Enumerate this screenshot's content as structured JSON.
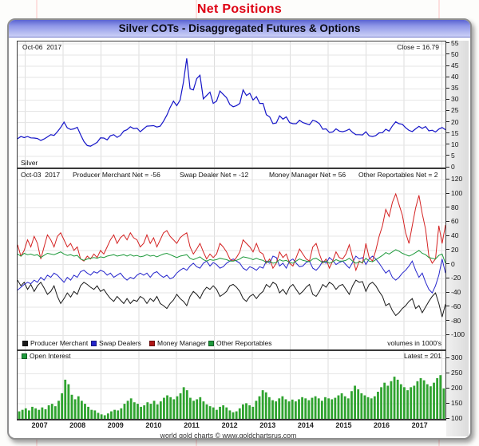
{
  "page": {
    "title": "Net Positions"
  },
  "window": {
    "title": "Silver COTs - Disaggregated Futures & Options"
  },
  "colors": {
    "title_red": "#de0012",
    "silver_line": "#1515c8",
    "producer_merchant": "#1a1a1a",
    "swap_dealers": "#2626cc",
    "money_manager": "#d42222",
    "other_reportables": "#1f9a3c",
    "open_interest_bar": "#2fa32f",
    "header_text": "#0a0a14"
  },
  "panel1": {
    "date_label": "Oct-06  2017",
    "close_label": "Close = 16.79",
    "series_label": "Silver"
  },
  "panel2": {
    "date_label": "Oct-03  2017",
    "stats": [
      "Producer Merchant Net = -56",
      "Swap Dealer Net = -12",
      "Money Manager Net = 56",
      "Other Reportables Net = 2"
    ]
  },
  "legend": {
    "items": [
      {
        "label": "Producer Merchant",
        "color": "#1a1a1a"
      },
      {
        "label": "Swap Dealers",
        "color": "#2626cc"
      },
      {
        "label": "Money Manager",
        "color": "#b01515"
      },
      {
        "label": "Other Reportables",
        "color": "#1f9a3c"
      }
    ],
    "volumes_note": "volumes in 1000's"
  },
  "panel3": {
    "label": "Open Interest",
    "swatch_color": "#1f9a3c",
    "latest_label": "Latest = 201"
  },
  "footer": {
    "credit": "world gold charts © www.goldchartsrus.com"
  },
  "x_axis": {
    "domain": [
      2006.8,
      2018.1
    ],
    "years": [
      2007,
      2008,
      2009,
      2010,
      2011,
      2012,
      2013,
      2014,
      2015,
      2016,
      2017
    ],
    "grid_years": [
      2007,
      2008,
      2009,
      2010,
      2011,
      2012,
      2013,
      2014,
      2015,
      2016,
      2017,
      2018
    ]
  },
  "chart_data": [
    {
      "id": "silver-price",
      "type": "line",
      "title": "Silver",
      "ylim": [
        0,
        56
      ],
      "yticks": [
        0,
        5,
        10,
        15,
        20,
        25,
        30,
        35,
        40,
        45,
        50,
        55
      ],
      "x_range_years": [
        2007.0,
        2017.78
      ],
      "latest_close": 16.79,
      "series": [
        {
          "name": "Silver",
          "color": "#1515c8",
          "width": 1.2,
          "values": [
            12.8,
            13.8,
            13.3,
            13.8,
            13.2,
            13.1,
            12.9,
            12.0,
            12.7,
            13.6,
            14.6,
            14.3,
            15.9,
            17.8,
            20.2,
            17.6,
            16.9,
            17.2,
            17.9,
            14.6,
            11.6,
            9.8,
            9.5,
            10.3,
            11.2,
            13.2,
            13.1,
            12.3,
            14.1,
            14.6,
            13.4,
            14.3,
            16.2,
            16.8,
            18.1,
            17.3,
            17.5,
            15.9,
            17.2,
            18.4,
            18.5,
            18.6,
            18.0,
            18.4,
            20.6,
            23.3,
            26.7,
            29.5,
            27.5,
            30.0,
            38.0,
            48.5,
            35.0,
            34.5,
            39.5,
            41.0,
            30.5,
            32.0,
            33.5,
            28.5,
            29.5,
            34.0,
            32.5,
            31.0,
            28.0,
            27.0,
            27.5,
            28.5,
            34.5,
            32.0,
            33.0,
            30.0,
            31.5,
            28.5,
            28.5,
            23.5,
            22.5,
            19.5,
            19.8,
            23.0,
            21.5,
            22.5,
            20.0,
            19.5,
            19.5,
            21.0,
            20.0,
            19.5,
            19.0,
            21.0,
            20.5,
            19.5,
            17.0,
            17.2,
            15.6,
            15.8,
            17.2,
            16.2,
            15.9,
            16.3,
            17.1,
            15.6,
            14.6,
            14.6,
            14.5,
            15.9,
            14.1,
            13.8,
            14.2,
            15.4,
            15.5,
            17.0,
            16.2,
            18.5,
            20.3,
            19.5,
            19.2,
            17.7,
            16.5,
            16.0,
            17.2,
            18.3,
            17.4,
            18.2,
            16.3,
            16.6,
            15.8,
            17.1,
            17.8,
            16.8
          ]
        }
      ]
    },
    {
      "id": "cot-net-positions",
      "type": "line",
      "title": "Disaggregated COT Net Positions (contracts in 1000's)",
      "ylim": [
        -120,
        135
      ],
      "yticks": [
        -100,
        -80,
        -60,
        -40,
        -20,
        0,
        20,
        40,
        60,
        80,
        100,
        120
      ],
      "latest": {
        "producer_merchant": -56,
        "swap_dealers": -12,
        "money_manager": 56,
        "other_reportables": 2
      },
      "series": [
        {
          "name": "Producer Merchant",
          "color": "#1a1a1a",
          "width": 1,
          "values": [
            -22,
            -30,
            -25,
            -35,
            -28,
            -38,
            -30,
            -25,
            -33,
            -42,
            -38,
            -30,
            -45,
            -55,
            -48,
            -40,
            -46,
            -38,
            -42,
            -30,
            -25,
            -28,
            -32,
            -35,
            -30,
            -38,
            -35,
            -42,
            -48,
            -52,
            -45,
            -50,
            -55,
            -48,
            -55,
            -50,
            -52,
            -45,
            -48,
            -55,
            -48,
            -52,
            -45,
            -55,
            -58,
            -62,
            -55,
            -50,
            -42,
            -48,
            -52,
            -58,
            -45,
            -38,
            -42,
            -48,
            -38,
            -32,
            -35,
            -30,
            -35,
            -45,
            -42,
            -38,
            -30,
            -28,
            -32,
            -38,
            -48,
            -52,
            -45,
            -42,
            -48,
            -42,
            -38,
            -28,
            -32,
            -25,
            -28,
            -40,
            -35,
            -42,
            -32,
            -28,
            -35,
            -42,
            -38,
            -32,
            -28,
            -42,
            -45,
            -38,
            -28,
            -32,
            -25,
            -28,
            -35,
            -30,
            -28,
            -35,
            -42,
            -30,
            -22,
            -25,
            -24,
            -38,
            -28,
            -25,
            -30,
            -38,
            -45,
            -58,
            -55,
            -65,
            -72,
            -68,
            -62,
            -58,
            -52,
            -48,
            -62,
            -58,
            -68,
            -60,
            -52,
            -45,
            -40,
            -55,
            -74,
            -56
          ]
        },
        {
          "name": "Swap Dealers",
          "color": "#2626cc",
          "width": 1,
          "values": [
            -36,
            -32,
            -28,
            -25,
            -27,
            -22,
            -25,
            -18,
            -22,
            -15,
            -18,
            -12,
            -15,
            -20,
            -25,
            -18,
            -22,
            -15,
            -18,
            -10,
            -8,
            -12,
            -15,
            -10,
            -12,
            -8,
            -10,
            -15,
            -12,
            -18,
            -15,
            -12,
            -18,
            -22,
            -18,
            -20,
            -15,
            -12,
            -15,
            -12,
            -18,
            -12,
            -10,
            -15,
            -18,
            -15,
            -20,
            -18,
            -12,
            -8,
            -5,
            -8,
            -2,
            2,
            -3,
            -5,
            2,
            5,
            -2,
            3,
            0,
            -5,
            -3,
            2,
            5,
            8,
            5,
            2,
            -5,
            -8,
            -3,
            -5,
            -8,
            -3,
            -5,
            5,
            2,
            12,
            10,
            -2,
            2,
            -5,
            5,
            8,
            2,
            -3,
            -2,
            3,
            5,
            -5,
            -8,
            -3,
            5,
            2,
            10,
            6,
            0,
            3,
            5,
            0,
            -5,
            3,
            12,
            8,
            10,
            0,
            8,
            12,
            8,
            2,
            -5,
            -12,
            -8,
            -18,
            -22,
            -18,
            -12,
            -8,
            -2,
            5,
            -8,
            -18,
            -12,
            -25,
            -35,
            -40,
            -30,
            -15,
            8,
            -12
          ]
        },
        {
          "name": "Money Manager",
          "color": "#d42222",
          "width": 1,
          "values": [
            28,
            12,
            20,
            35,
            25,
            40,
            30,
            8,
            25,
            42,
            35,
            25,
            40,
            45,
            35,
            25,
            30,
            20,
            25,
            8,
            5,
            12,
            8,
            15,
            10,
            20,
            15,
            25,
            35,
            42,
            30,
            38,
            42,
            35,
            45,
            38,
            35,
            25,
            30,
            42,
            30,
            38,
            25,
            35,
            45,
            48,
            40,
            35,
            30,
            38,
            42,
            45,
            25,
            15,
            22,
            30,
            18,
            8,
            15,
            10,
            15,
            30,
            25,
            18,
            8,
            5,
            10,
            18,
            35,
            30,
            25,
            18,
            30,
            18,
            15,
            2,
            8,
            -5,
            2,
            18,
            10,
            15,
            2,
            -2,
            10,
            22,
            15,
            8,
            5,
            25,
            30,
            15,
            2,
            8,
            -5,
            5,
            18,
            10,
            8,
            15,
            28,
            10,
            -8,
            5,
            2,
            30,
            10,
            5,
            20,
            40,
            55,
            78,
            68,
            88,
            100,
            85,
            70,
            45,
            30,
            55,
            80,
            98,
            72,
            50,
            12,
            2,
            8,
            55,
            30,
            56
          ]
        },
        {
          "name": "Other Reportables",
          "color": "#1f9a3c",
          "width": 1,
          "values": [
            15,
            12,
            16,
            14,
            15,
            13,
            14,
            10,
            13,
            16,
            15,
            14,
            16,
            18,
            15,
            13,
            14,
            12,
            13,
            8,
            6,
            8,
            9,
            10,
            9,
            11,
            10,
            12,
            13,
            14,
            12,
            13,
            14,
            12,
            14,
            12,
            13,
            11,
            12,
            14,
            12,
            13,
            11,
            13,
            15,
            16,
            14,
            12,
            10,
            12,
            13,
            14,
            9,
            7,
            9,
            11,
            7,
            5,
            7,
            6,
            7,
            9,
            8,
            7,
            5,
            5,
            6,
            8,
            11,
            10,
            9,
            7,
            9,
            7,
            6,
            3,
            5,
            2,
            3,
            7,
            5,
            6,
            3,
            2,
            5,
            8,
            6,
            5,
            4,
            8,
            9,
            6,
            3,
            5,
            2,
            4,
            7,
            5,
            5,
            6,
            9,
            5,
            2,
            4,
            3,
            9,
            5,
            4,
            7,
            10,
            13,
            17,
            15,
            18,
            21,
            19,
            16,
            14,
            12,
            14,
            17,
            20,
            16,
            14,
            10,
            9,
            8,
            13,
            15,
            2
          ]
        }
      ]
    },
    {
      "id": "open-interest",
      "type": "bar",
      "title": "Open Interest (volumes in 1000's)",
      "ylim": [
        100,
        325
      ],
      "yticks": [
        100,
        150,
        200,
        250,
        300
      ],
      "latest": 201,
      "series": [
        {
          "name": "Open Interest",
          "color": "#2fa32f",
          "values": [
            125,
            130,
            135,
            128,
            140,
            135,
            130,
            138,
            132,
            145,
            150,
            142,
            160,
            185,
            230,
            215,
            180,
            165,
            175,
            160,
            150,
            140,
            130,
            128,
            120,
            115,
            112,
            118,
            125,
            130,
            128,
            135,
            150,
            160,
            168,
            155,
            150,
            140,
            145,
            155,
            150,
            160,
            148,
            158,
            170,
            178,
            172,
            165,
            175,
            185,
            205,
            195,
            170,
            160,
            165,
            172,
            158,
            148,
            142,
            138,
            130,
            140,
            145,
            138,
            128,
            122,
            125,
            135,
            148,
            152,
            145,
            140,
            160,
            175,
            195,
            188,
            172,
            162,
            158,
            168,
            175,
            165,
            158,
            164,
            158,
            165,
            172,
            168,
            162,
            170,
            175,
            168,
            160,
            172,
            168,
            165,
            170,
            178,
            185,
            175,
            168,
            192,
            210,
            198,
            185,
            178,
            172,
            168,
            175,
            190,
            205,
            220,
            210,
            225,
            240,
            230,
            215,
            205,
            195,
            205,
            210,
            225,
            235,
            228,
            215,
            208,
            220,
            235,
            245,
            201
          ]
        }
      ]
    }
  ]
}
